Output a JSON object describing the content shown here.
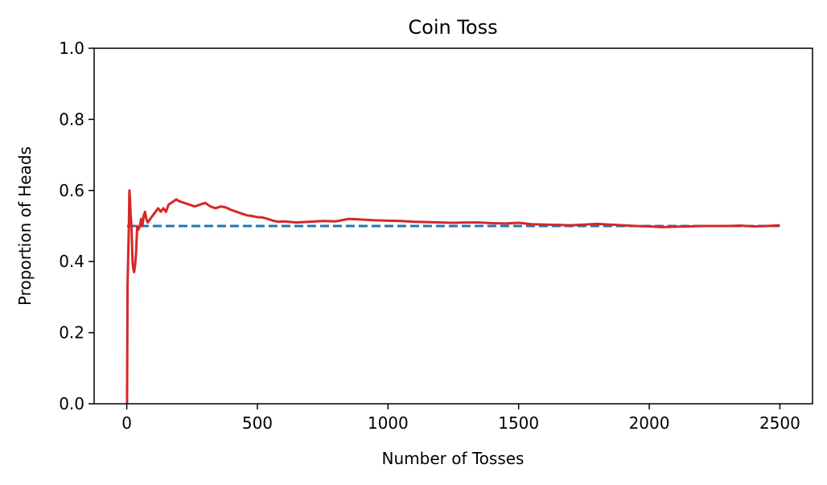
{
  "chart_data": {
    "type": "line",
    "title": "Coin Toss",
    "xlabel": "Number of Tosses",
    "ylabel": "Proportion of Heads",
    "xlim": [
      -125,
      2625
    ],
    "ylim": [
      0,
      1
    ],
    "xticks": [
      0,
      500,
      1000,
      1500,
      2000,
      2500
    ],
    "yticks": [
      0.0,
      0.2,
      0.4,
      0.6,
      0.8,
      1.0
    ],
    "xtick_labels": [
      "0",
      "500",
      "1000",
      "1500",
      "2000",
      "2500"
    ],
    "ytick_labels": [
      "0.0",
      "0.2",
      "0.4",
      "0.6",
      "0.8",
      "1.0"
    ],
    "grid": false,
    "legend": "none",
    "series": [
      {
        "style": "solid",
        "color": "#d62728",
        "x": [
          1,
          3,
          5,
          8,
          10,
          12,
          15,
          18,
          20,
          22,
          25,
          28,
          30,
          33,
          36,
          40,
          45,
          50,
          55,
          60,
          65,
          70,
          75,
          80,
          90,
          100,
          110,
          120,
          130,
          140,
          150,
          160,
          170,
          180,
          190,
          200,
          220,
          240,
          260,
          280,
          300,
          320,
          340,
          360,
          380,
          400,
          420,
          440,
          460,
          480,
          500,
          520,
          540,
          560,
          580,
          600,
          650,
          700,
          750,
          800,
          850,
          900,
          950,
          1000,
          1050,
          1100,
          1150,
          1200,
          1250,
          1300,
          1350,
          1400,
          1450,
          1500,
          1550,
          1600,
          1650,
          1700,
          1750,
          1800,
          1850,
          1900,
          1950,
          2000,
          2050,
          2100,
          2150,
          2200,
          2250,
          2300,
          2350,
          2400,
          2450,
          2500
        ],
        "y": [
          0.0,
          0.33,
          0.4,
          0.5,
          0.6,
          0.58,
          0.53,
          0.5,
          0.45,
          0.4,
          0.38,
          0.37,
          0.38,
          0.4,
          0.43,
          0.5,
          0.49,
          0.5,
          0.52,
          0.5,
          0.53,
          0.54,
          0.52,
          0.51,
          0.52,
          0.53,
          0.54,
          0.55,
          0.54,
          0.55,
          0.54,
          0.56,
          0.565,
          0.57,
          0.575,
          0.57,
          0.565,
          0.56,
          0.555,
          0.56,
          0.565,
          0.555,
          0.55,
          0.555,
          0.552,
          0.545,
          0.54,
          0.535,
          0.53,
          0.528,
          0.525,
          0.524,
          0.52,
          0.515,
          0.512,
          0.513,
          0.51,
          0.512,
          0.514,
          0.513,
          0.52,
          0.518,
          0.516,
          0.515,
          0.514,
          0.512,
          0.511,
          0.51,
          0.509,
          0.51,
          0.51,
          0.508,
          0.507,
          0.509,
          0.505,
          0.504,
          0.503,
          0.502,
          0.504,
          0.506,
          0.504,
          0.502,
          0.5,
          0.499,
          0.497,
          0.498,
          0.499,
          0.5,
          0.5,
          0.5,
          0.501,
          0.499,
          0.5,
          0.502
        ]
      },
      {
        "style": "dashed",
        "color": "#1f77b4",
        "x": [
          1,
          2500
        ],
        "y": [
          0.5,
          0.5
        ]
      }
    ]
  }
}
